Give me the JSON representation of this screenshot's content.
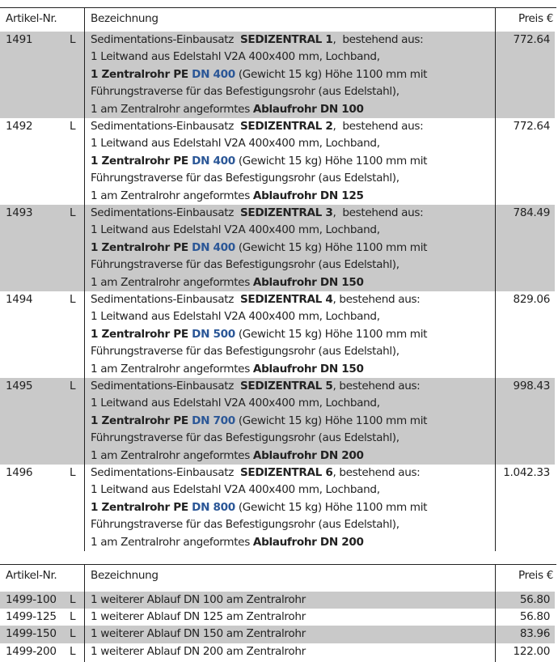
{
  "colors": {
    "row_shade": "#c9c9c9",
    "accent_blue": "#2b5797"
  },
  "table1": {
    "headers": {
      "nr": "Artikel-Nr.",
      "desc": "Bezeichnung",
      "price": "Preis €"
    },
    "rows": [
      {
        "nr": "1491",
        "flag": "L",
        "price": "772.64",
        "shaded": true,
        "lines": [
          [
            {
              "t": "Sedimentations-Einbausatz  "
            },
            {
              "t": "SEDIZENTRAL 1",
              "s": "b"
            },
            {
              "t": ",  bestehend aus:"
            }
          ],
          [
            {
              "t": "1 Leitwand aus Edelstahl V2A 400x400 mm, Lochband,"
            }
          ],
          [
            {
              "t": "1 Zentralrohr PE ",
              "s": "b"
            },
            {
              "t": "DN 400",
              "s": "blue"
            },
            {
              "t": " (Gewicht 15 kg) Höhe 1100 mm mit"
            }
          ],
          [
            {
              "t": "Führungstraverse für das Befestigungsrohr (aus Edelstahl),"
            }
          ],
          [
            {
              "t": "1 am Zentralrohr angeformtes "
            },
            {
              "t": "Ablaufrohr DN 100",
              "s": "b"
            }
          ]
        ]
      },
      {
        "nr": "1492",
        "flag": "L",
        "price": "772.64",
        "shaded": false,
        "lines": [
          [
            {
              "t": "Sedimentations-Einbausatz  "
            },
            {
              "t": "SEDIZENTRAL 2",
              "s": "b"
            },
            {
              "t": ",  bestehend aus:"
            }
          ],
          [
            {
              "t": "1 Leitwand aus Edelstahl V2A 400x400 mm, Lochband,"
            }
          ],
          [
            {
              "t": "1 Zentralrohr PE ",
              "s": "b"
            },
            {
              "t": "DN 400",
              "s": "blue"
            },
            {
              "t": " (Gewicht 15 kg) Höhe 1100 mm mit"
            }
          ],
          [
            {
              "t": "Führungstraverse für das Befestigungsrohr (aus Edelstahl),"
            }
          ],
          [
            {
              "t": "1 am Zentralrohr angeformtes "
            },
            {
              "t": "Ablaufrohr DN 125",
              "s": "b"
            }
          ]
        ]
      },
      {
        "nr": "1493",
        "flag": "L",
        "price": "784.49",
        "shaded": true,
        "lines": [
          [
            {
              "t": "Sedimentations-Einbausatz  "
            },
            {
              "t": "SEDIZENTRAL 3",
              "s": "b"
            },
            {
              "t": ",  bestehend aus:"
            }
          ],
          [
            {
              "t": "1 Leitwand aus Edelstahl V2A 400x400 mm, Lochband,"
            }
          ],
          [
            {
              "t": "1 Zentralrohr PE ",
              "s": "b"
            },
            {
              "t": "DN 400",
              "s": "blue"
            },
            {
              "t": " (Gewicht 15 kg) Höhe 1100 mm mit"
            }
          ],
          [
            {
              "t": "Führungstraverse für das Befestigungsrohr (aus Edelstahl),"
            }
          ],
          [
            {
              "t": "1 am Zentralrohr angeformtes "
            },
            {
              "t": "Ablaufrohr DN 150",
              "s": "b"
            }
          ]
        ]
      },
      {
        "nr": "1494",
        "flag": "L",
        "price": "829.06",
        "shaded": false,
        "lines": [
          [
            {
              "t": "Sedimentations-Einbausatz  "
            },
            {
              "t": "SEDIZENTRAL 4",
              "s": "b"
            },
            {
              "t": ", bestehend aus:"
            }
          ],
          [
            {
              "t": "1 Leitwand aus Edelstahl V2A 400x400 mm, Lochband,"
            }
          ],
          [
            {
              "t": "1 Zentralrohr PE ",
              "s": "b"
            },
            {
              "t": "DN 500",
              "s": "blue"
            },
            {
              "t": " (Gewicht 15 kg) Höhe 1100 mm mit"
            }
          ],
          [
            {
              "t": "Führungstraverse für das Befestigungsrohr (aus Edelstahl),"
            }
          ],
          [
            {
              "t": "1 am Zentralrohr angeformtes "
            },
            {
              "t": "Ablaufrohr DN 150",
              "s": "b"
            }
          ]
        ]
      },
      {
        "nr": "1495",
        "flag": "L",
        "price": "998.43",
        "shaded": true,
        "lines": [
          [
            {
              "t": "Sedimentations-Einbausatz  "
            },
            {
              "t": "SEDIZENTRAL 5",
              "s": "b"
            },
            {
              "t": ", bestehend aus:"
            }
          ],
          [
            {
              "t": "1 Leitwand aus Edelstahl V2A 400x400 mm, Lochband,"
            }
          ],
          [
            {
              "t": "1 Zentralrohr PE ",
              "s": "b"
            },
            {
              "t": "DN 700",
              "s": "blue"
            },
            {
              "t": " (Gewicht 15 kg) Höhe 1100 mm mit"
            }
          ],
          [
            {
              "t": "Führungstraverse für das Befestigungsrohr (aus Edelstahl),"
            }
          ],
          [
            {
              "t": "1 am Zentralrohr angeformtes "
            },
            {
              "t": "Ablaufrohr DN 200",
              "s": "b"
            }
          ]
        ]
      },
      {
        "nr": "1496",
        "flag": "L",
        "price": "1.042.33",
        "shaded": false,
        "lines": [
          [
            {
              "t": "Sedimentations-Einbausatz  "
            },
            {
              "t": "SEDIZENTRAL 6",
              "s": "b"
            },
            {
              "t": ", bestehend aus:"
            }
          ],
          [
            {
              "t": "1 Leitwand aus Edelstahl V2A 400x400 mm, Lochband,"
            }
          ],
          [
            {
              "t": "1 Zentralrohr PE ",
              "s": "b"
            },
            {
              "t": "DN 800",
              "s": "blue"
            },
            {
              "t": " (Gewicht 15 kg) Höhe 1100 mm mit"
            }
          ],
          [
            {
              "t": "Führungstraverse für das Befestigungsrohr (aus Edelstahl),"
            }
          ],
          [
            {
              "t": "1 am Zentralrohr angeformtes "
            },
            {
              "t": "Ablaufrohr DN 200",
              "s": "b"
            }
          ]
        ]
      }
    ]
  },
  "table2": {
    "headers": {
      "nr": "Artikel-Nr.",
      "desc": "Bezeichnung",
      "price": "Preis €"
    },
    "rows": [
      {
        "nr": "1499-100",
        "flag": "L",
        "price": "56.80",
        "shaded": true,
        "lines": [
          [
            {
              "t": "1 weiterer Ablauf DN 100 am Zentralrohr"
            }
          ]
        ]
      },
      {
        "nr": "1499-125",
        "flag": "L",
        "price": "56.80",
        "shaded": false,
        "lines": [
          [
            {
              "t": "1 weiterer Ablauf DN 125 am Zentralrohr"
            }
          ]
        ]
      },
      {
        "nr": "1499-150",
        "flag": "L",
        "price": "83.96",
        "shaded": true,
        "lines": [
          [
            {
              "t": "1 weiterer Ablauf DN 150 am Zentralrohr"
            }
          ]
        ]
      },
      {
        "nr": "1499-200",
        "flag": "L",
        "price": "122.00",
        "shaded": false,
        "lines": [
          [
            {
              "t": "1 weiterer Ablauf DN 200 am Zentralrohr"
            }
          ]
        ]
      }
    ]
  }
}
